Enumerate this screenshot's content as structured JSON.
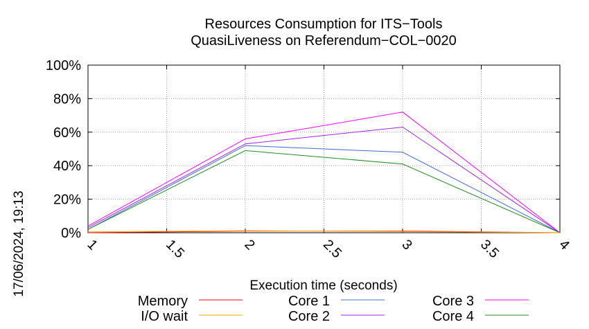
{
  "chart_data": {
    "type": "line",
    "title": "Resources Consumption for ITS−Tools",
    "subtitle": "QuasiLiveness on Referendum−COL−0020",
    "xlabel": "Execution time (seconds)",
    "ylabel": "",
    "side_label": "17/06/2024, 19:13",
    "xlim": [
      1,
      4
    ],
    "ylim": [
      0,
      100
    ],
    "x_ticks": [
      1,
      1.5,
      2,
      2.5,
      3,
      3.5,
      4
    ],
    "x_tick_labels": [
      "1",
      "1.5",
      "2",
      "2.5",
      "3",
      "3.5",
      "4"
    ],
    "y_ticks": [
      0,
      20,
      40,
      60,
      80,
      100
    ],
    "y_tick_labels": [
      "0%",
      "20%",
      "40%",
      "60%",
      "80%",
      "100%"
    ],
    "grid": true,
    "legend_position": "bottom",
    "x": [
      1,
      2,
      3,
      4
    ],
    "series": [
      {
        "name": "Memory",
        "color": "#ff0000",
        "values": [
          0,
          1,
          1,
          0
        ]
      },
      {
        "name": "I/O wait",
        "color": "#ffa500",
        "values": [
          0.5,
          1.2,
          0.7,
          0
        ]
      },
      {
        "name": "Core 1",
        "color": "#4169e1",
        "values": [
          2,
          52,
          48,
          0
        ]
      },
      {
        "name": "Core 2",
        "color": "#a020f0",
        "values": [
          3,
          53,
          63,
          0
        ]
      },
      {
        "name": "Core 3",
        "color": "#ff00ff",
        "values": [
          4,
          56,
          72,
          0
        ]
      },
      {
        "name": "Core 4",
        "color": "#228b22",
        "values": [
          2,
          49,
          41,
          0
        ]
      }
    ]
  }
}
